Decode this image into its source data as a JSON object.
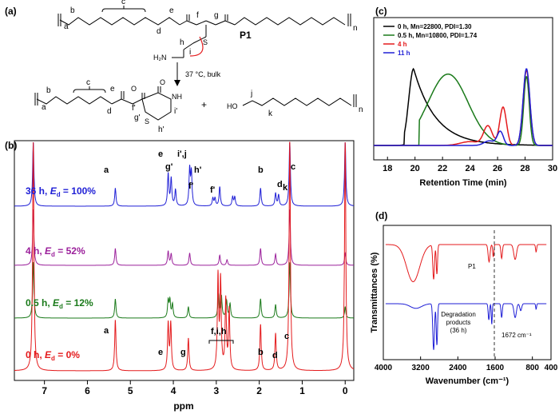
{
  "panels": {
    "a": "(a)",
    "b": "(b)",
    "c": "(c)",
    "d": "(d)"
  },
  "scheme": {
    "polymer_label": "P1",
    "condition": "37 °C, bulk",
    "subscript_n": "n",
    "plus": "+",
    "top_labels": {
      "a": "a",
      "b": "b",
      "c": "c",
      "d": "d",
      "e": "e",
      "f": "f",
      "g": "g",
      "h": "h",
      "i": "i",
      "s": "S",
      "nh2": "H₂N"
    },
    "bottom_labels": {
      "a": "a",
      "b": "b",
      "c": "c",
      "d": "d",
      "e": "e",
      "f": "f'",
      "g": "g'",
      "h": "h'",
      "i": "i'",
      "s": "S",
      "o": "O",
      "nh": "NH",
      "ho": "HO",
      "j": "j",
      "k": "k"
    }
  },
  "colors": {
    "black": "#000000",
    "green": "#1a7a1a",
    "red": "#e41a1c",
    "blue": "#1f1fd6",
    "purple": "#9b209b"
  },
  "chart_data": [
    {
      "type": "line",
      "panel": "(b)",
      "xlabel": "ppm",
      "xlim": [
        7.7,
        -0.2
      ],
      "x_reversed": true,
      "ticks": [
        7,
        6,
        5,
        4,
        3,
        2,
        1,
        0
      ],
      "series": [
        {
          "name": "36 h, Ed = 100%",
          "label_prefix": "36 h, ",
          "label_E": "E",
          "label_sub": "d",
          "label_suffix": " = 100%",
          "color": "#1f1fd6",
          "peaks": [
            [
              7.26,
              1.0
            ],
            [
              5.35,
              0.28
            ],
            [
              4.12,
              0.5
            ],
            [
              4.05,
              0.42
            ],
            [
              3.95,
              0.25
            ],
            [
              3.62,
              0.56
            ],
            [
              3.58,
              0.5
            ],
            [
              3.08,
              0.12
            ],
            [
              3.03,
              0.12
            ],
            [
              2.92,
              0.3
            ],
            [
              2.62,
              0.14
            ],
            [
              2.57,
              0.14
            ],
            [
              1.97,
              0.28
            ],
            [
              1.62,
              0.2
            ],
            [
              1.55,
              0.17
            ],
            [
              1.29,
              1.0
            ],
            [
              0.0,
              1.0
            ]
          ]
        },
        {
          "name": "4 h, Ed = 52%",
          "label_prefix": "4 h, ",
          "label_E": "E",
          "label_sub": "d",
          "label_suffix": " = 52%",
          "color": "#9b209b",
          "peaks": [
            [
              7.26,
              1.0
            ],
            [
              5.35,
              0.3
            ],
            [
              4.12,
              0.25
            ],
            [
              4.05,
              0.2
            ],
            [
              3.62,
              0.22
            ],
            [
              2.92,
              0.18
            ],
            [
              2.75,
              0.1
            ],
            [
              1.97,
              0.3
            ],
            [
              1.62,
              0.2
            ],
            [
              1.29,
              1.0
            ],
            [
              0.0,
              0.22
            ]
          ]
        },
        {
          "name": "0.5 h, Ed = 12%",
          "label_prefix": "0.5 h, ",
          "label_E": "E",
          "label_sub": "d",
          "label_suffix": " = 12%",
          "color": "#1a7a1a",
          "peaks": [
            [
              7.26,
              1.0
            ],
            [
              5.35,
              0.34
            ],
            [
              4.12,
              0.3
            ],
            [
              4.08,
              0.3
            ],
            [
              4.02,
              0.24
            ],
            [
              3.65,
              0.2
            ],
            [
              2.95,
              0.42
            ],
            [
              2.88,
              0.38
            ],
            [
              2.76,
              0.3
            ],
            [
              2.68,
              0.25
            ],
            [
              1.97,
              0.34
            ],
            [
              1.62,
              0.24
            ],
            [
              1.29,
              1.0
            ],
            [
              0.0,
              0.2
            ]
          ]
        },
        {
          "name": "0 h, Ed = 0%",
          "label_prefix": "0 h, ",
          "label_E": "E",
          "label_sub": "d",
          "label_suffix": " = 0%",
          "color": "#e41a1c",
          "peaks": [
            [
              7.26,
              1.0
            ],
            [
              5.35,
              0.22
            ],
            [
              4.12,
              0.2
            ],
            [
              4.06,
              0.2
            ],
            [
              3.65,
              0.14
            ],
            [
              2.96,
              0.4
            ],
            [
              2.9,
              0.38
            ],
            [
              2.78,
              0.3
            ],
            [
              2.7,
              0.26
            ],
            [
              1.97,
              0.2
            ],
            [
              1.62,
              0.16
            ],
            [
              1.29,
              1.0
            ],
            [
              0.0,
              1.0
            ]
          ]
        }
      ],
      "annotations": {
        "s36": {
          "a": "a",
          "e": "e",
          "g": "g'",
          "ij": "i',j",
          "h": "h'",
          "f1": "f'",
          "f2": "f'",
          "b": "b",
          "d": "d",
          "k": "k",
          "c": "c"
        },
        "s0": {
          "a": "a",
          "e": "e",
          "g": "g",
          "fih": "f,i,h",
          "b": "b",
          "d": "d",
          "c": "c"
        }
      }
    },
    {
      "type": "line",
      "panel": "(c)",
      "xlabel": "Retention Time (min)",
      "xlim": [
        17,
        30
      ],
      "ticks": [
        18,
        20,
        22,
        24,
        26,
        28,
        30
      ],
      "legend_position": "top-left",
      "series": [
        {
          "name": "0 h, Mn=22800, PDI=1.30",
          "color": "#000000"
        },
        {
          "name": "0.5 h, Mn=10800, PDI=1.74",
          "color": "#1a7a1a"
        },
        {
          "name": "4 h",
          "color": "#e41a1c"
        },
        {
          "name": "11 h",
          "color": "#1f1fd6"
        }
      ]
    },
    {
      "type": "line",
      "panel": "(d)",
      "xlabel": "Wavenumber (cm⁻¹)",
      "ylabel": "Transmittances (%)",
      "xlim": [
        4000,
        400
      ],
      "x_reversed": true,
      "ticks": [
        4000,
        3200,
        2400,
        1600,
        800,
        400
      ],
      "tick_labels": [
        "4000",
        "3200",
        "2400",
        "1600",
        "800",
        "400"
      ],
      "tick_labels_shown": [
        "4000",
        "3200",
        "2400",
        "1600",
        "800",
        "400"
      ],
      "marker_line": 1672,
      "annotations": {
        "p1": "P1",
        "deg1": "Degradation",
        "deg2": "products",
        "deg3": "(36 h)",
        "band": "1672 cm⁻¹"
      },
      "series": [
        {
          "name": "P1",
          "color": "#e41a1c"
        },
        {
          "name": "Degradation products (36 h)",
          "color": "#1f1fd6"
        }
      ]
    }
  ]
}
